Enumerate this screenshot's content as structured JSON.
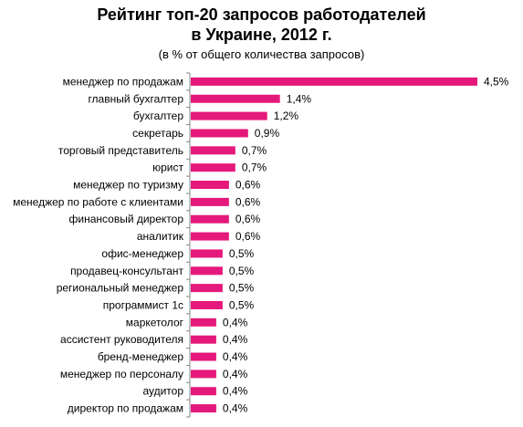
{
  "header": {
    "title_line1": "Рейтинг топ-20 запросов работодателей",
    "title_line2": "в Украине, 2012 г.",
    "subtitle": "(в % от общего количества запросов)"
  },
  "chart_data": {
    "type": "bar",
    "orientation": "horizontal",
    "title": "Рейтинг топ-20 запросов работодателей в Украине, 2012 г.",
    "subtitle": "(в % от общего количества запросов)",
    "bar_color": "#e5197b",
    "unit": "%",
    "xlim": [
      0,
      4.5
    ],
    "categories": [
      "менеджер по продажам",
      "главный бухгалтер",
      "бухгалтер",
      "секретарь",
      "торговый представитель",
      "юрист",
      "менеджер по туризму",
      "менеджер по работе с клиентами",
      "финансовый директор",
      "аналитик",
      "офис-менеджер",
      "продавец-консультант",
      "региональный менеджер",
      "программист 1с",
      "маркетолог",
      "ассистент руководителя",
      "бренд-менеджер",
      "менеджер по персоналу",
      "аудитор",
      "директор по продажам"
    ],
    "values": [
      4.5,
      1.4,
      1.2,
      0.9,
      0.7,
      0.7,
      0.6,
      0.6,
      0.6,
      0.6,
      0.5,
      0.5,
      0.5,
      0.5,
      0.4,
      0.4,
      0.4,
      0.4,
      0.4,
      0.4
    ],
    "value_labels": [
      "4,5%",
      "1,4%",
      "1,2%",
      "0,9%",
      "0,7%",
      "0,7%",
      "0,6%",
      "0,6%",
      "0,6%",
      "0,6%",
      "0,5%",
      "0,5%",
      "0,5%",
      "0,5%",
      "0,4%",
      "0,4%",
      "0,4%",
      "0,4%",
      "0,4%",
      "0,4%"
    ]
  }
}
